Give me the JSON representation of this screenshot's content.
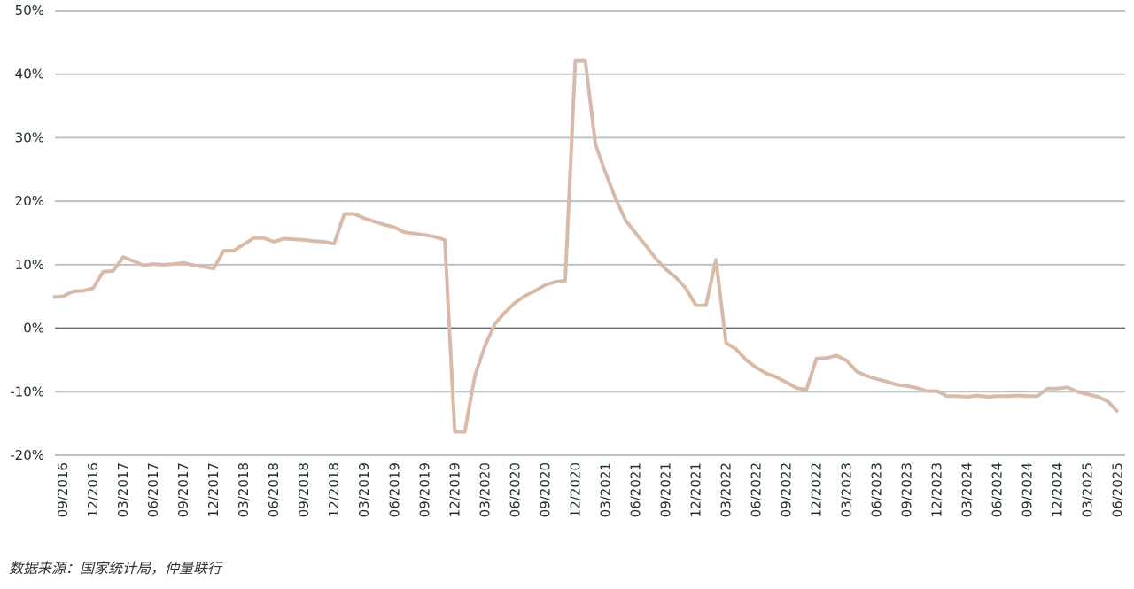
{
  "chart_data": {
    "type": "line",
    "source": "数据来源：国家统计局，仲量联行",
    "categories": [
      null,
      "09/2016",
      null,
      null,
      "12/2016",
      null,
      null,
      "03/2017",
      null,
      null,
      "06/2017",
      null,
      null,
      "09/2017",
      null,
      null,
      "12/2017",
      null,
      null,
      "03/2018",
      null,
      null,
      "06/2018",
      null,
      null,
      "09/2018",
      null,
      null,
      "12/2018",
      null,
      null,
      "03/2019",
      null,
      null,
      "06/2019",
      null,
      null,
      "09/2019",
      null,
      null,
      "12/2019",
      null,
      null,
      "03/2020",
      null,
      null,
      "06/2020",
      null,
      null,
      "09/2020",
      null,
      null,
      "12/2020",
      null,
      null,
      "03/2021",
      null,
      null,
      "06/2021",
      null,
      null,
      "09/2021",
      null,
      null,
      "12/2021",
      null,
      null,
      "03/2022",
      null,
      null,
      "06/2022",
      null,
      null,
      "09/2022",
      null,
      null,
      "12/2022",
      null,
      null,
      "03/2023",
      null,
      null,
      "06/2023",
      null,
      null,
      "09/2023",
      null,
      null,
      "12/2023",
      null,
      null,
      "03/2024",
      null,
      null,
      "06/2024",
      null,
      null,
      "09/2024",
      null,
      null,
      "12/2024",
      null,
      null,
      "03/2025",
      null,
      null,
      "06/2025"
    ],
    "series": [
      {
        "color": "#d7bba8",
        "values": [
          4.9,
          5.0,
          5.8,
          5.9,
          6.3,
          8.9,
          9.0,
          11.2,
          10.6,
          9.9,
          10.1,
          10.0,
          10.1,
          10.3,
          9.9,
          9.7,
          9.4,
          12.2,
          12.2,
          13.2,
          14.2,
          14.2,
          13.6,
          14.1,
          14.0,
          13.9,
          13.7,
          13.6,
          13.3,
          18.0,
          18.0,
          17.3,
          16.8,
          16.3,
          15.9,
          15.1,
          14.9,
          14.7,
          14.4,
          13.9,
          -16.3,
          -16.3,
          -7.5,
          -2.8,
          0.7,
          2.5,
          4.0,
          5.1,
          5.9,
          6.8,
          7.3,
          7.5,
          42.1,
          42.1,
          29.0,
          24.5,
          20.5,
          17.0,
          15.0,
          13.0,
          11.0,
          9.3,
          8.0,
          6.3,
          3.6,
          3.6,
          10.8,
          -2.3,
          -3.3,
          -5.0,
          -6.2,
          -7.1,
          -7.7,
          -8.5,
          -9.4,
          -9.7,
          -4.8,
          -4.7,
          -4.3,
          -5.1,
          -6.8,
          -7.5,
          -8.0,
          -8.4,
          -8.9,
          -9.1,
          -9.4,
          -9.9,
          -9.9,
          -10.7,
          -10.7,
          -10.8,
          -10.6,
          -10.8,
          -10.7,
          -10.7,
          -10.6,
          -10.7,
          -10.7,
          -9.5,
          -9.5,
          -9.3,
          -10.0,
          -10.4,
          -10.8,
          -11.5,
          -13.2
        ]
      }
    ],
    "ylim": [
      -20,
      50
    ],
    "yticks": [
      {
        "value": -20,
        "label": "-20%"
      },
      {
        "value": -10,
        "label": "-10%"
      },
      {
        "value": 0,
        "label": "0%"
      },
      {
        "value": 10,
        "label": "10%"
      },
      {
        "value": 20,
        "label": "20%"
      },
      {
        "value": 30,
        "label": "30%"
      },
      {
        "value": 40,
        "label": "40%"
      },
      {
        "value": 50,
        "label": "50%"
      }
    ],
    "grid": true
  }
}
